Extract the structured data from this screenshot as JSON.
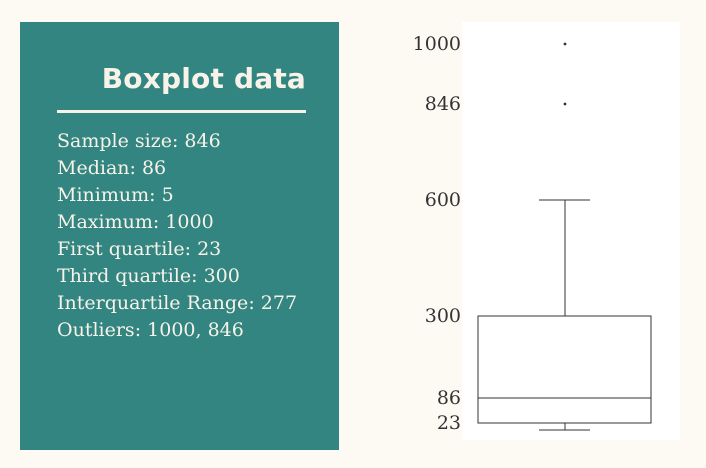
{
  "panel": {
    "title": "Boxplot data",
    "stats": [
      {
        "label": "Sample size",
        "value": "846"
      },
      {
        "label": "Median",
        "value": "86"
      },
      {
        "label": "Minimum",
        "value": "5"
      },
      {
        "label": "Maximum",
        "value": "1000"
      },
      {
        "label": "First quartile",
        "value": "23"
      },
      {
        "label": "Third quartile",
        "value": "300"
      },
      {
        "label": "Interquartile Range",
        "value": "277"
      },
      {
        "label": "Outliers",
        "value": "1000, 846"
      }
    ]
  },
  "colors": {
    "panel_background": "#338582",
    "panel_text": "#f7f3e8",
    "page_background": "#fdf9f3",
    "plot_background": "#ffffff",
    "box_stroke": "#333333"
  },
  "chart_data": {
    "type": "boxplot",
    "min": 5,
    "q1": 23,
    "median": 86,
    "q3": 300,
    "max": 600,
    "whisker_low": 5,
    "whisker_high": 600,
    "outliers": [
      1000,
      846
    ],
    "y_ticks": [
      1000,
      846,
      600,
      300,
      86,
      23
    ],
    "ylim": [
      5,
      1000
    ],
    "grid": false,
    "legend": "none"
  }
}
